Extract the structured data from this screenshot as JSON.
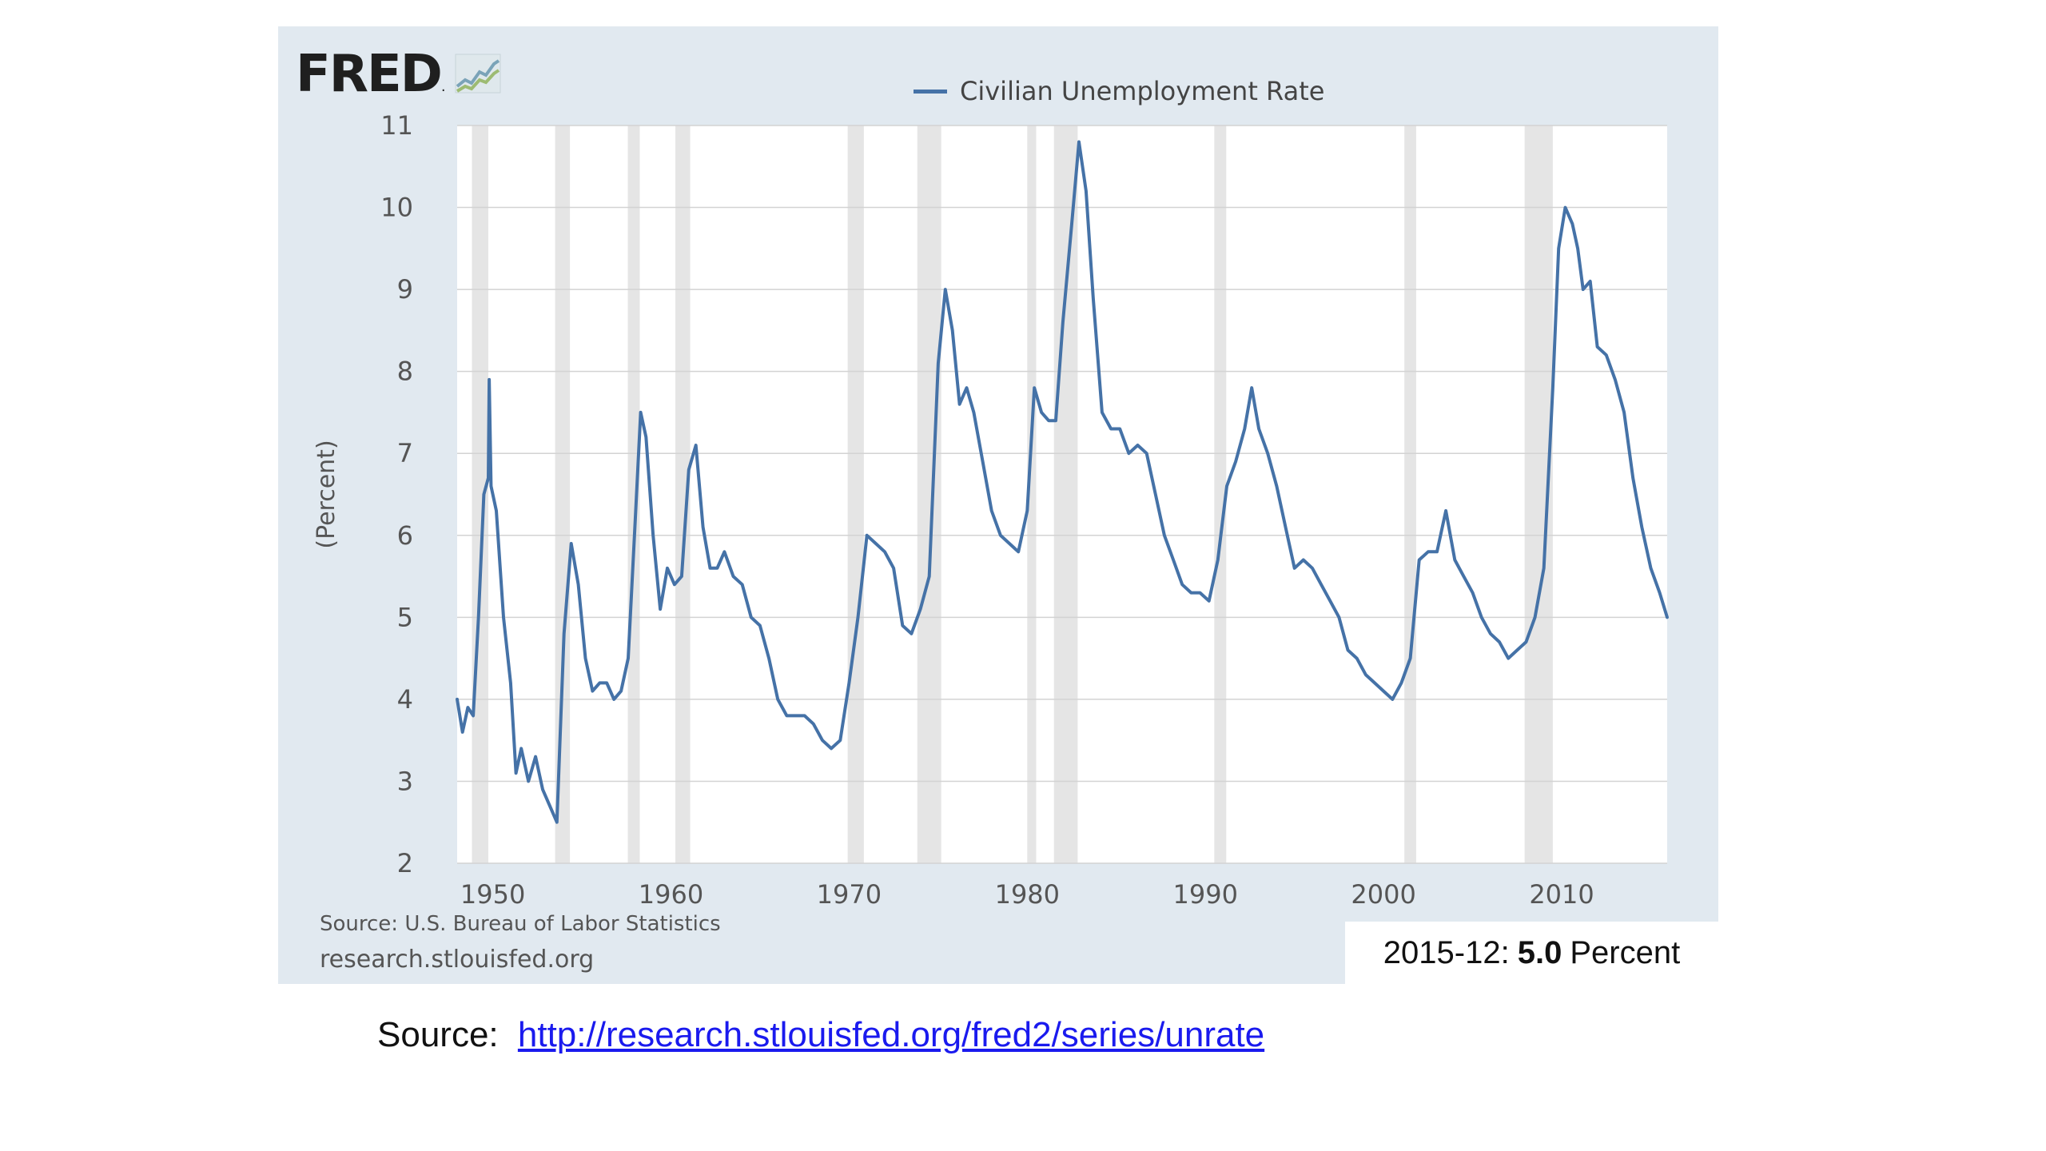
{
  "header": {
    "logo_text": "FRED",
    "logo_mark": ".",
    "legend_label": "Civilian Unemployment Rate",
    "line_color": "#4572a7"
  },
  "footer": {
    "source_note": "Source: U.S. Bureau of Labor Statistics",
    "site": "research.stlouisfed.org",
    "latest_date": "2015-12:",
    "latest_value": "5.0",
    "latest_unit": "Percent"
  },
  "source_line": {
    "label": "Source:",
    "link_text": "http://research.stlouisfed.org/fred2/series/unrate"
  },
  "chart_data": {
    "type": "line",
    "title": "",
    "xlabel": "",
    "ylabel": "(Percent)",
    "xlim": [
      1948,
      2015.92
    ],
    "ylim": [
      2,
      11
    ],
    "x_ticks": [
      1950,
      1960,
      1970,
      1980,
      1990,
      2000,
      2010
    ],
    "y_ticks": [
      2,
      3,
      4,
      5,
      6,
      7,
      8,
      9,
      10,
      11
    ],
    "grid": "horizontal",
    "legend": "top-center",
    "recessions": [
      [
        1948.83,
        1949.75
      ],
      [
        1953.5,
        1954.33
      ],
      [
        1957.58,
        1958.25
      ],
      [
        1960.25,
        1961.08
      ],
      [
        1969.92,
        1970.83
      ],
      [
        1973.83,
        1975.17
      ],
      [
        1980.0,
        1980.5
      ],
      [
        1981.5,
        1982.83
      ],
      [
        1990.5,
        1991.17
      ],
      [
        2001.17,
        2001.83
      ],
      [
        2007.92,
        2009.5
      ]
    ],
    "series": [
      {
        "name": "Civilian Unemployment Rate",
        "x": [
          1948.0,
          1948.3,
          1948.6,
          1948.9,
          1949.2,
          1949.5,
          1949.75,
          1949.8,
          1949.9,
          1950.2,
          1950.6,
          1951.0,
          1951.3,
          1951.6,
          1952.0,
          1952.4,
          1952.8,
          1953.2,
          1953.6,
          1954.0,
          1954.4,
          1954.8,
          1955.2,
          1955.6,
          1956.0,
          1956.4,
          1956.8,
          1957.2,
          1957.6,
          1958.0,
          1958.3,
          1958.6,
          1959.0,
          1959.4,
          1959.8,
          1960.2,
          1960.6,
          1961.0,
          1961.4,
          1961.8,
          1962.2,
          1962.6,
          1963.0,
          1963.5,
          1964.0,
          1964.5,
          1965.0,
          1965.5,
          1966.0,
          1966.5,
          1967.0,
          1967.5,
          1968.0,
          1968.5,
          1969.0,
          1969.5,
          1970.0,
          1970.5,
          1971.0,
          1971.5,
          1972.0,
          1972.5,
          1973.0,
          1973.5,
          1974.0,
          1974.5,
          1975.0,
          1975.4,
          1975.8,
          1976.2,
          1976.6,
          1977.0,
          1977.5,
          1978.0,
          1978.5,
          1979.0,
          1979.5,
          1980.0,
          1980.4,
          1980.8,
          1981.2,
          1981.6,
          1982.0,
          1982.5,
          1982.9,
          1983.3,
          1983.7,
          1984.2,
          1984.7,
          1985.2,
          1985.7,
          1986.2,
          1986.7,
          1987.2,
          1987.7,
          1988.2,
          1988.7,
          1989.2,
          1989.7,
          1990.2,
          1990.7,
          1991.2,
          1991.7,
          1992.2,
          1992.6,
          1993.0,
          1993.5,
          1994.0,
          1994.5,
          1995.0,
          1995.5,
          1996.0,
          1996.5,
          1997.0,
          1997.5,
          1998.0,
          1998.5,
          1999.0,
          1999.5,
          2000.0,
          2000.5,
          2001.0,
          2001.5,
          2002.0,
          2002.5,
          2003.0,
          2003.5,
          2004.0,
          2004.5,
          2005.0,
          2005.5,
          2006.0,
          2006.5,
          2007.0,
          2007.5,
          2008.0,
          2008.5,
          2009.0,
          2009.5,
          2009.83,
          2010.2,
          2010.6,
          2010.9,
          2011.2,
          2011.6,
          2012.0,
          2012.5,
          2013.0,
          2013.5,
          2014.0,
          2014.5,
          2015.0,
          2015.5,
          2015.92
        ],
        "y": [
          4.0,
          3.6,
          3.9,
          3.8,
          5.0,
          6.5,
          6.7,
          7.9,
          6.6,
          6.3,
          5.0,
          4.2,
          3.1,
          3.4,
          3.0,
          3.3,
          2.9,
          2.7,
          2.5,
          4.8,
          5.9,
          5.4,
          4.5,
          4.1,
          4.2,
          4.2,
          4.0,
          4.1,
          4.5,
          6.2,
          7.5,
          7.2,
          6.0,
          5.1,
          5.6,
          5.4,
          5.5,
          6.8,
          7.1,
          6.1,
          5.6,
          5.6,
          5.8,
          5.5,
          5.4,
          5.0,
          4.9,
          4.5,
          4.0,
          3.8,
          3.8,
          3.8,
          3.7,
          3.5,
          3.4,
          3.5,
          4.2,
          5.0,
          6.0,
          5.9,
          5.8,
          5.6,
          4.9,
          4.8,
          5.1,
          5.5,
          8.1,
          9.0,
          8.5,
          7.6,
          7.8,
          7.5,
          6.9,
          6.3,
          6.0,
          5.9,
          5.8,
          6.3,
          7.8,
          7.5,
          7.4,
          7.4,
          8.6,
          9.8,
          10.8,
          10.2,
          8.9,
          7.5,
          7.3,
          7.3,
          7.0,
          7.1,
          7.0,
          6.5,
          6.0,
          5.7,
          5.4,
          5.3,
          5.3,
          5.2,
          5.7,
          6.6,
          6.9,
          7.3,
          7.8,
          7.3,
          7.0,
          6.6,
          6.1,
          5.6,
          5.7,
          5.6,
          5.4,
          5.2,
          5.0,
          4.6,
          4.5,
          4.3,
          4.2,
          4.1,
          4.0,
          4.2,
          4.5,
          5.7,
          5.8,
          5.8,
          6.3,
          5.7,
          5.5,
          5.3,
          5.0,
          4.8,
          4.7,
          4.5,
          4.6,
          4.7,
          5.0,
          5.6,
          7.8,
          9.5,
          10.0,
          9.8,
          9.5,
          9.0,
          9.1,
          8.3,
          8.2,
          7.9,
          7.5,
          6.7,
          6.1,
          5.6,
          5.3,
          5.0
        ]
      }
    ]
  }
}
